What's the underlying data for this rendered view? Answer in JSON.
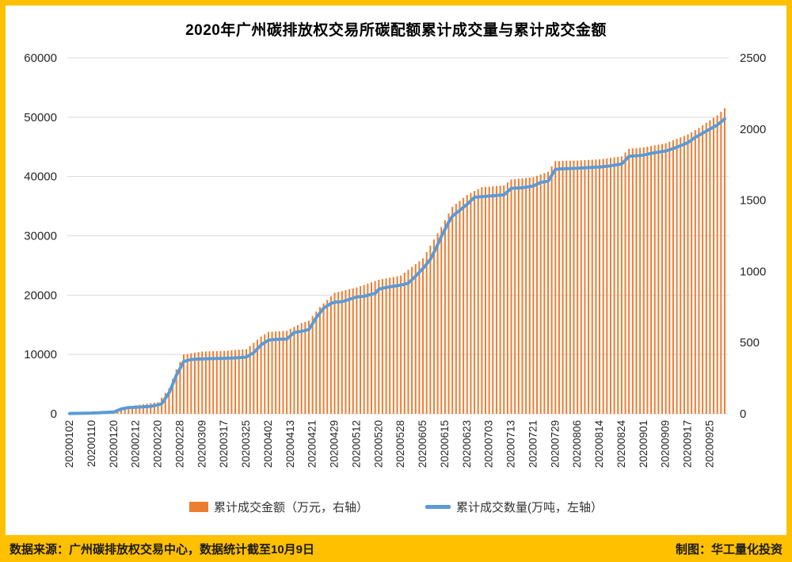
{
  "page": {
    "frame_color": "#FFC000",
    "background": "#ffffff"
  },
  "footer": {
    "left": "数据来源：广州碳排放权交易中心，数据统计截至10月9日",
    "right": "制图：华工量化投资"
  },
  "legend": {
    "items": [
      {
        "label": "累计成交金额（万元，右轴）",
        "color": "#ED7D31",
        "type": "bar"
      },
      {
        "label": "累计成交数量(万吨，左轴）",
        "color": "#5B9BD5",
        "type": "line"
      }
    ]
  },
  "chart_data": {
    "type": "combo",
    "title": "2020年广州碳排放权交易所碳配额累计成交量与累计成交金额",
    "n_points": 179,
    "x_label_every": 6,
    "x_labels": [
      "20200102",
      "20200110",
      "20200120",
      "20200212",
      "20200220",
      "20200228",
      "20200309",
      "20200317",
      "20200325",
      "20200402",
      "20200413",
      "20200421",
      "20200429",
      "20200512",
      "20200520",
      "20200528",
      "20200605",
      "20200615",
      "20200623",
      "20200703",
      "20200713",
      "20200721",
      "20200729",
      "20200806",
      "20200814",
      "20200824",
      "20200901",
      "20200909",
      "20200917",
      "20200925"
    ],
    "left_axis": {
      "min": 0,
      "max": 60000,
      "step": 10000,
      "ticks": [
        "0",
        "10000",
        "20000",
        "30000",
        "40000",
        "50000",
        "60000"
      ]
    },
    "right_axis": {
      "min": 0,
      "max": 2500,
      "step": 500,
      "ticks": [
        "0",
        "500",
        "1000",
        "1500",
        "2000",
        "2500"
      ]
    },
    "grid": true,
    "grid_color": "#D9D9D9",
    "axis_text_color": "#262626",
    "series": [
      {
        "name": "累计成交金额（万元，右轴）",
        "type": "bar",
        "axis": "right",
        "color": "#ED7D31",
        "label_values": [
          2,
          6,
          15,
          60,
          81,
          365,
          437,
          442,
          454,
          575,
          597,
          686,
          850,
          887,
          941,
          971,
          1092,
          1359,
          1537,
          1596,
          1646,
          1662,
          1775,
          1779,
          1787,
          1808,
          1871,
          1900,
          1962,
          2062
        ],
        "anchors": [
          [
            0,
            2
          ],
          [
            6,
            6
          ],
          [
            12,
            15
          ],
          [
            14,
            42
          ],
          [
            18,
            60
          ],
          [
            24,
            81
          ],
          [
            27,
            179
          ],
          [
            29,
            312
          ],
          [
            31,
            417
          ],
          [
            36,
            437
          ],
          [
            42,
            442
          ],
          [
            48,
            454
          ],
          [
            52,
            542
          ],
          [
            54,
            575
          ],
          [
            59,
            583
          ],
          [
            63,
            637
          ],
          [
            65,
            654
          ],
          [
            68,
            750
          ],
          [
            72,
            850
          ],
          [
            78,
            887
          ],
          [
            84,
            941
          ],
          [
            90,
            971
          ],
          [
            96,
            1092
          ],
          [
            101,
            1312
          ],
          [
            104,
            1454
          ],
          [
            108,
            1537
          ],
          [
            112,
            1592
          ],
          [
            118,
            1604
          ],
          [
            120,
            1646
          ],
          [
            126,
            1662
          ],
          [
            130,
            1700
          ],
          [
            132,
            1775
          ],
          [
            138,
            1779
          ],
          [
            144,
            1787
          ],
          [
            150,
            1808
          ],
          [
            152,
            1862
          ],
          [
            156,
            1871
          ],
          [
            162,
            1900
          ],
          [
            168,
            1962
          ],
          [
            171,
            2008
          ],
          [
            174,
            2062
          ],
          [
            176,
            2096
          ],
          [
            178,
            2146
          ]
        ]
      },
      {
        "name": "累计成交数量(万吨，左轴）",
        "type": "line",
        "axis": "left",
        "color": "#5B9BD5",
        "label_values": [
          50,
          120,
          300,
          1100,
          1500,
          7650,
          9250,
          9350,
          9550,
          12400,
          13150,
          15200,
          18800,
          19700,
          21000,
          21700,
          24500,
          31100,
          35300,
          36700,
          38000,
          38400,
          41200,
          41400,
          41600,
          42100,
          43600,
          44300,
          45700,
          48000
        ],
        "anchors": [
          [
            0,
            50
          ],
          [
            6,
            120
          ],
          [
            12,
            300
          ],
          [
            14,
            800
          ],
          [
            16,
            1050
          ],
          [
            18,
            1100
          ],
          [
            22,
            1250
          ],
          [
            24,
            1500
          ],
          [
            25,
            1700
          ],
          [
            27,
            3500
          ],
          [
            29,
            6500
          ],
          [
            31,
            8800
          ],
          [
            33,
            9150
          ],
          [
            36,
            9250
          ],
          [
            42,
            9350
          ],
          [
            46,
            9450
          ],
          [
            48,
            9550
          ],
          [
            50,
            10300
          ],
          [
            52,
            11600
          ],
          [
            54,
            12400
          ],
          [
            56,
            12550
          ],
          [
            59,
            12600
          ],
          [
            61,
            13700
          ],
          [
            63,
            13900
          ],
          [
            65,
            14200
          ],
          [
            67,
            16200
          ],
          [
            69,
            17800
          ],
          [
            71,
            18600
          ],
          [
            72,
            18800
          ],
          [
            74,
            18900
          ],
          [
            78,
            19700
          ],
          [
            80,
            19800
          ],
          [
            83,
            20300
          ],
          [
            84,
            21000
          ],
          [
            86,
            21300
          ],
          [
            90,
            21700
          ],
          [
            92,
            22000
          ],
          [
            94,
            23200
          ],
          [
            96,
            24500
          ],
          [
            98,
            26000
          ],
          [
            100,
            28500
          ],
          [
            101,
            29900
          ],
          [
            103,
            32300
          ],
          [
            104,
            33300
          ],
          [
            106,
            34300
          ],
          [
            107,
            34800
          ],
          [
            108,
            35300
          ],
          [
            110,
            36500
          ],
          [
            114,
            36700
          ],
          [
            118,
            36900
          ],
          [
            120,
            38000
          ],
          [
            123,
            38100
          ],
          [
            126,
            38400
          ],
          [
            128,
            39000
          ],
          [
            130,
            39200
          ],
          [
            132,
            41200
          ],
          [
            134,
            41300
          ],
          [
            138,
            41400
          ],
          [
            144,
            41600
          ],
          [
            147,
            41800
          ],
          [
            150,
            42100
          ],
          [
            152,
            43400
          ],
          [
            156,
            43600
          ],
          [
            158,
            43900
          ],
          [
            162,
            44300
          ],
          [
            164,
            44700
          ],
          [
            166,
            45200
          ],
          [
            168,
            45700
          ],
          [
            170,
            46600
          ],
          [
            172,
            47300
          ],
          [
            174,
            48000
          ],
          [
            176,
            48700
          ],
          [
            178,
            49700
          ]
        ]
      }
    ]
  }
}
